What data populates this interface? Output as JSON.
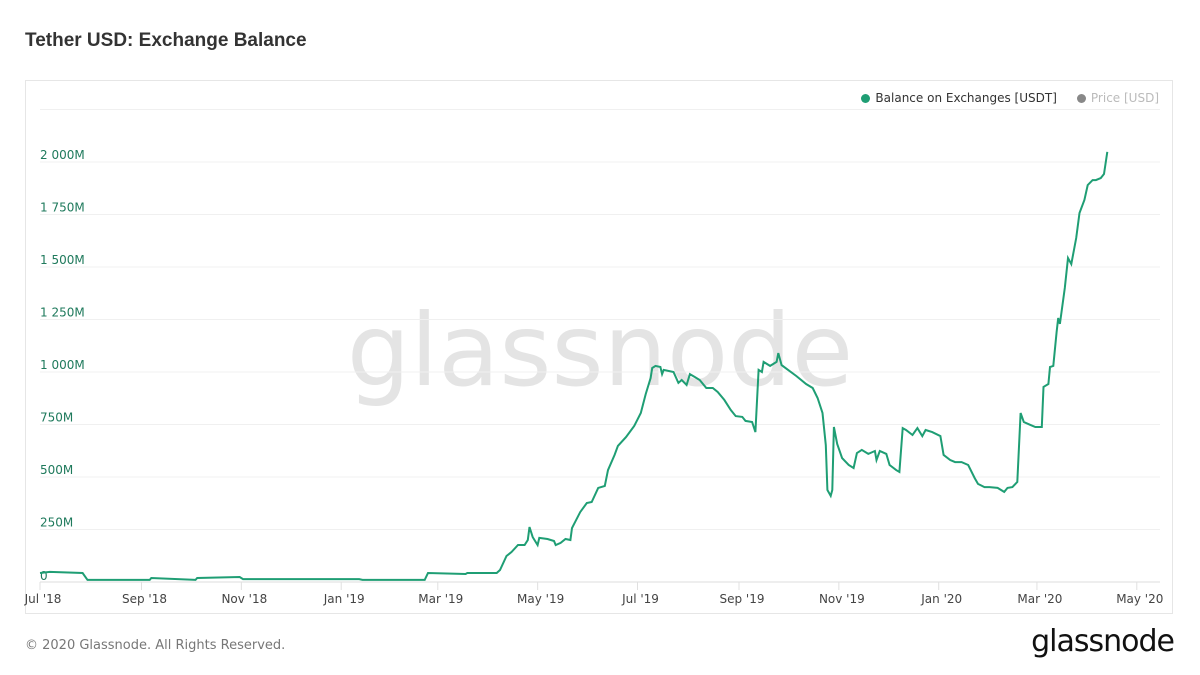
{
  "title": "Tether USD: Exchange Balance",
  "footer": "© 2020 Glassnode. All Rights Reserved.",
  "brand": "glassnode",
  "watermark": "glassnode",
  "colors": {
    "series": "#1f9e74",
    "price": "#888888",
    "axis_label": "#1f7a5c"
  },
  "legend": [
    {
      "label": "Balance on Exchanges [USDT]",
      "active": true
    },
    {
      "label": "Price [USD]",
      "active": false
    }
  ],
  "chart_data": {
    "type": "line",
    "title": "Tether USD: Exchange Balance",
    "x_unit": "days since start_date",
    "start_date": "2018-07-01",
    "ylabel": "Balance on Exchanges [USDT]",
    "y_unit": "M USDT",
    "ylim": [
      0,
      2250
    ],
    "xlim": [
      0,
      690
    ],
    "grid": true,
    "legend_position": "top-right",
    "y_ticks": [
      {
        "value": 0,
        "label": "0"
      },
      {
        "value": 250,
        "label": "250M"
      },
      {
        "value": 500,
        "label": "500M"
      },
      {
        "value": 750,
        "label": "750M"
      },
      {
        "value": 1000,
        "label": "1 000M"
      },
      {
        "value": 1250,
        "label": "1 250M"
      },
      {
        "value": 1500,
        "label": "1 500M"
      },
      {
        "value": 1750,
        "label": "1 750M"
      },
      {
        "value": 2000,
        "label": "2 000M"
      }
    ],
    "x_ticks": [
      {
        "day": 0,
        "label": "Jul '18"
      },
      {
        "day": 62,
        "label": "Sep '18"
      },
      {
        "day": 123,
        "label": "Nov '18"
      },
      {
        "day": 184,
        "label": "Jan '19"
      },
      {
        "day": 243,
        "label": "Mar '19"
      },
      {
        "day": 304,
        "label": "May '19"
      },
      {
        "day": 365,
        "label": "Jul '19"
      },
      {
        "day": 427,
        "label": "Sep '19"
      },
      {
        "day": 488,
        "label": "Nov '19"
      },
      {
        "day": 549,
        "label": "Jan '20"
      },
      {
        "day": 609,
        "label": "Mar '20"
      },
      {
        "day": 670,
        "label": "May '20"
      }
    ],
    "series": [
      {
        "name": "Balance on Exchanges [USDT]",
        "points": [
          [
            0,
            43
          ],
          [
            6,
            48
          ],
          [
            26,
            43
          ],
          [
            29,
            10
          ],
          [
            67,
            10
          ],
          [
            68,
            19
          ],
          [
            95,
            10
          ],
          [
            96,
            19
          ],
          [
            122,
            24
          ],
          [
            124,
            14
          ],
          [
            159,
            14
          ],
          [
            195,
            14
          ],
          [
            197,
            10
          ],
          [
            235,
            10
          ],
          [
            237,
            43
          ],
          [
            260,
            38
          ],
          [
            261,
            43
          ],
          [
            279,
            43
          ],
          [
            281,
            57
          ],
          [
            285,
            124
          ],
          [
            288,
            143
          ],
          [
            292,
            176
          ],
          [
            296,
            176
          ],
          [
            298,
            200
          ],
          [
            299,
            262
          ],
          [
            301,
            214
          ],
          [
            304,
            176
          ],
          [
            305,
            210
          ],
          [
            310,
            205
          ],
          [
            314,
            195
          ],
          [
            315,
            176
          ],
          [
            318,
            186
          ],
          [
            321,
            205
          ],
          [
            324,
            200
          ],
          [
            325,
            257
          ],
          [
            330,
            333
          ],
          [
            334,
            376
          ],
          [
            337,
            381
          ],
          [
            341,
            448
          ],
          [
            345,
            457
          ],
          [
            347,
            533
          ],
          [
            351,
            605
          ],
          [
            353,
            648
          ],
          [
            358,
            690
          ],
          [
            363,
            743
          ],
          [
            367,
            805
          ],
          [
            370,
            895
          ],
          [
            373,
            971
          ],
          [
            374,
            1019
          ],
          [
            376,
            1029
          ],
          [
            379,
            1024
          ],
          [
            380,
            990
          ],
          [
            381,
            1010
          ],
          [
            387,
            1000
          ],
          [
            390,
            948
          ],
          [
            392,
            962
          ],
          [
            395,
            938
          ],
          [
            397,
            990
          ],
          [
            400,
            976
          ],
          [
            403,
            962
          ],
          [
            407,
            924
          ],
          [
            411,
            924
          ],
          [
            414,
            905
          ],
          [
            418,
            867
          ],
          [
            422,
            819
          ],
          [
            425,
            790
          ],
          [
            429,
            786
          ],
          [
            431,
            767
          ],
          [
            435,
            762
          ],
          [
            437,
            714
          ],
          [
            439,
            1010
          ],
          [
            441,
            1000
          ],
          [
            442,
            1048
          ],
          [
            446,
            1029
          ],
          [
            450,
            1048
          ],
          [
            451,
            1090
          ],
          [
            453,
            1033
          ],
          [
            457,
            1010
          ],
          [
            462,
            981
          ],
          [
            468,
            943
          ],
          [
            472,
            924
          ],
          [
            475,
            876
          ],
          [
            478,
            805
          ],
          [
            480,
            652
          ],
          [
            481,
            438
          ],
          [
            483,
            410
          ],
          [
            484,
            438
          ],
          [
            485,
            738
          ],
          [
            487,
            657
          ],
          [
            490,
            590
          ],
          [
            494,
            557
          ],
          [
            497,
            543
          ],
          [
            499,
            614
          ],
          [
            502,
            629
          ],
          [
            506,
            610
          ],
          [
            510,
            624
          ],
          [
            511,
            581
          ],
          [
            513,
            624
          ],
          [
            517,
            610
          ],
          [
            519,
            557
          ],
          [
            523,
            533
          ],
          [
            525,
            524
          ],
          [
            527,
            733
          ],
          [
            529,
            724
          ],
          [
            533,
            700
          ],
          [
            536,
            733
          ],
          [
            539,
            695
          ],
          [
            541,
            724
          ],
          [
            545,
            714
          ],
          [
            550,
            695
          ],
          [
            552,
            605
          ],
          [
            556,
            581
          ],
          [
            559,
            571
          ],
          [
            563,
            571
          ],
          [
            567,
            557
          ],
          [
            571,
            495
          ],
          [
            573,
            467
          ],
          [
            577,
            452
          ],
          [
            580,
            452
          ],
          [
            585,
            448
          ],
          [
            589,
            429
          ],
          [
            591,
            448
          ],
          [
            594,
            452
          ],
          [
            597,
            476
          ],
          [
            599,
            805
          ],
          [
            601,
            762
          ],
          [
            605,
            748
          ],
          [
            608,
            738
          ],
          [
            612,
            738
          ],
          [
            613,
            929
          ],
          [
            616,
            943
          ],
          [
            617,
            1024
          ],
          [
            619,
            1029
          ],
          [
            621,
            1190
          ],
          [
            622,
            1257
          ],
          [
            623,
            1229
          ],
          [
            626,
            1400
          ],
          [
            628,
            1543
          ],
          [
            630,
            1514
          ],
          [
            633,
            1638
          ],
          [
            635,
            1757
          ],
          [
            638,
            1819
          ],
          [
            640,
            1890
          ],
          [
            643,
            1914
          ],
          [
            645,
            1914
          ],
          [
            648,
            1924
          ],
          [
            650,
            1943
          ],
          [
            652,
            2048
          ]
        ]
      }
    ]
  }
}
